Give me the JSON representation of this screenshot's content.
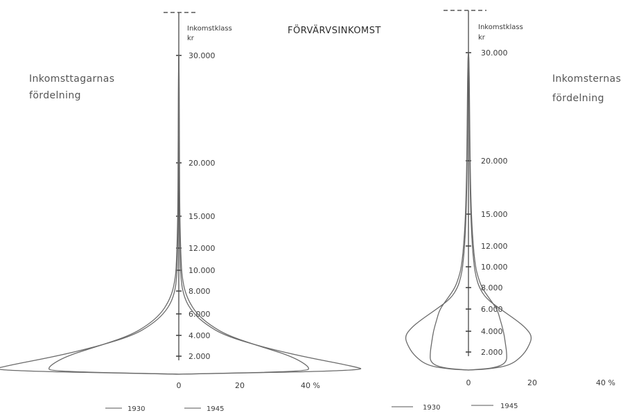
{
  "title": "FÖRVÄRVSINKOMST",
  "legend": {
    "y1930": "1930",
    "y1945": "1945"
  },
  "chart_data": [
    {
      "type": "area",
      "panel": "left",
      "side_label": [
        "Inkomsttagarnas",
        "fördelning"
      ],
      "axis_header": [
        "Inkomstklass",
        "kr"
      ],
      "yticks": [
        "2.000",
        "4.000",
        "6.000",
        "8.000",
        "10.000",
        "12.000",
        "15.000",
        "20.000",
        "30.000"
      ],
      "xticks": [
        "0",
        "20",
        "40 %"
      ],
      "series": [
        {
          "name": "1930",
          "points": [
            [
              0,
              1000
            ],
            [
              62,
              1200
            ],
            [
              57,
              1450
            ],
            [
              40,
              2000
            ],
            [
              26,
              3000
            ],
            [
              15,
              4000
            ],
            [
              9,
              5000
            ],
            [
              5,
              6000
            ],
            [
              2.5,
              7000
            ],
            [
              1.3,
              8000
            ],
            [
              0.8,
              9000
            ],
            [
              0.55,
              10000
            ],
            [
              0.4,
              12000
            ],
            [
              0.25,
              15000
            ],
            [
              0.15,
              20000
            ],
            [
              0.08,
              30000
            ]
          ]
        },
        {
          "name": "1945",
          "points": [
            [
              0,
              1000
            ],
            [
              42,
              1150
            ],
            [
              43,
              1400
            ],
            [
              37,
              2000
            ],
            [
              26,
              3000
            ],
            [
              16,
              4000
            ],
            [
              10,
              5000
            ],
            [
              6,
              6000
            ],
            [
              3.5,
              7000
            ],
            [
              2,
              8000
            ],
            [
              1.3,
              9000
            ],
            [
              0.9,
              10000
            ],
            [
              0.6,
              12000
            ],
            [
              0.35,
              15000
            ],
            [
              0.2,
              20000
            ],
            [
              0.1,
              30000
            ]
          ]
        }
      ]
    },
    {
      "type": "area",
      "panel": "right",
      "side_label": [
        "Inkomsternas",
        "fördelning"
      ],
      "axis_header": [
        "Inkomstklass",
        "kr"
      ],
      "yticks": [
        "2.000",
        "4.000",
        "6.000",
        "8.000",
        "10.000",
        "12.000",
        "15.000",
        "20.000",
        "30.000"
      ],
      "xticks": [
        "0",
        "20",
        "40 %"
      ],
      "series": [
        {
          "name": "1930",
          "points": [
            [
              0,
              1000
            ],
            [
              6,
              1050
            ],
            [
              13,
              1250
            ],
            [
              17,
              1800
            ],
            [
              19,
              2600
            ],
            [
              20,
              3500
            ],
            [
              18,
              4300
            ],
            [
              15,
              5000
            ],
            [
              10,
              6000
            ],
            [
              5.5,
              7000
            ],
            [
              3.4,
              8000
            ],
            [
              2.4,
              9000
            ],
            [
              1.8,
              10000
            ],
            [
              1.2,
              12000
            ],
            [
              0.7,
              15000
            ],
            [
              0.4,
              20000
            ],
            [
              0.15,
              30000
            ]
          ]
        },
        {
          "name": "1945",
          "points": [
            [
              0,
              1000
            ],
            [
              8,
              1100
            ],
            [
              12,
              1400
            ],
            [
              12,
              2000
            ],
            [
              11.5,
              3000
            ],
            [
              11,
              4000
            ],
            [
              10,
              5000
            ],
            [
              9,
              6000
            ],
            [
              6.5,
              7000
            ],
            [
              4.2,
              8000
            ],
            [
              3,
              9000
            ],
            [
              2.2,
              10000
            ],
            [
              1.5,
              12000
            ],
            [
              0.9,
              15000
            ],
            [
              0.5,
              20000
            ],
            [
              0.2,
              30000
            ]
          ]
        }
      ]
    }
  ]
}
